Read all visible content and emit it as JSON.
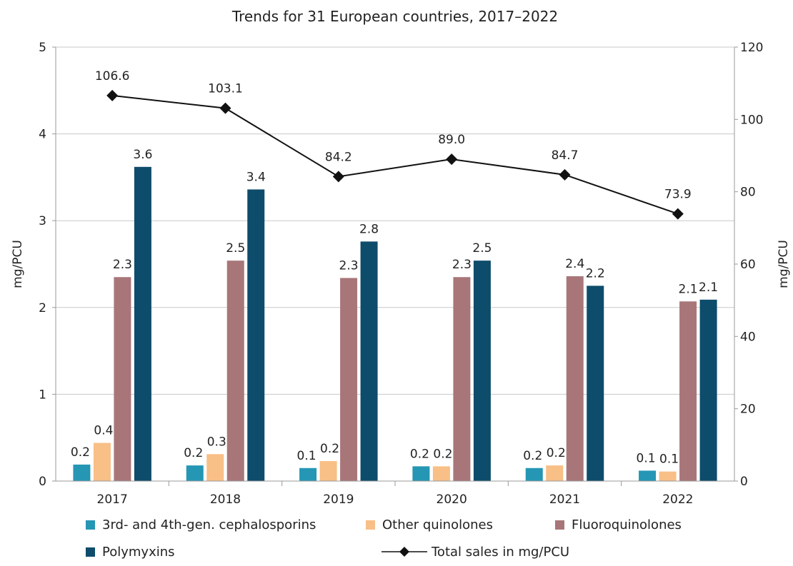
{
  "chart_data": {
    "type": "bar+line",
    "title": "Trends for 31 European countries, 2017–2022",
    "categories": [
      "2017",
      "2018",
      "2019",
      "2020",
      "2021",
      "2022"
    ],
    "y_left": {
      "label": "mg/PCU",
      "range": [
        0,
        5
      ],
      "ticks": [
        0,
        1,
        2,
        3,
        4,
        5
      ],
      "tick_labels": [
        "0",
        "1",
        "2",
        "3",
        "4",
        "5"
      ]
    },
    "y_right": {
      "label": "mg/PCU",
      "range": [
        0,
        120
      ],
      "ticks": [
        0,
        20,
        40,
        60,
        80,
        100,
        120
      ],
      "tick_labels": [
        "0",
        "20",
        "40",
        "60",
        "80",
        "100",
        "120"
      ]
    },
    "grid": "horizontal",
    "legend_position": "bottom",
    "bar_series": [
      {
        "name": "3rd- and 4th-gen. cephalosporins",
        "color": "#2596b4",
        "values": [
          0.19,
          0.18,
          0.15,
          0.17,
          0.15,
          0.12
        ],
        "labels": [
          "0.2",
          "0.2",
          "0.1",
          "0.2",
          "0.2",
          "0.1"
        ]
      },
      {
        "name": "Other quinolones",
        "color": "#f8bf86",
        "values": [
          0.44,
          0.31,
          0.23,
          0.17,
          0.18,
          0.11
        ],
        "labels": [
          "0.4",
          "0.3",
          "0.2",
          "0.2",
          "0.2",
          "0.1"
        ]
      },
      {
        "name": "Fluoroquinolones",
        "color": "#a87679",
        "values": [
          2.35,
          2.54,
          2.34,
          2.35,
          2.36,
          2.07
        ],
        "labels": [
          "2.3",
          "2.5",
          "2.3",
          "2.3",
          "2.4",
          "2.1"
        ]
      },
      {
        "name": "Polymyxins",
        "color": "#0e4c6b",
        "values": [
          3.62,
          3.36,
          2.76,
          2.54,
          2.25,
          2.09
        ],
        "labels": [
          "3.6",
          "3.4",
          "2.8",
          "2.5",
          "2.2",
          "2.1"
        ]
      }
    ],
    "line_series": {
      "name": "Total sales in mg/PCU",
      "color": "#111111",
      "marker": "diamond",
      "axis": "right",
      "values": [
        106.6,
        103.1,
        84.2,
        89.0,
        84.7,
        73.9
      ],
      "labels": [
        "106.6",
        "103.1",
        "84.2",
        "89.0",
        "84.7",
        "73.9"
      ]
    }
  }
}
